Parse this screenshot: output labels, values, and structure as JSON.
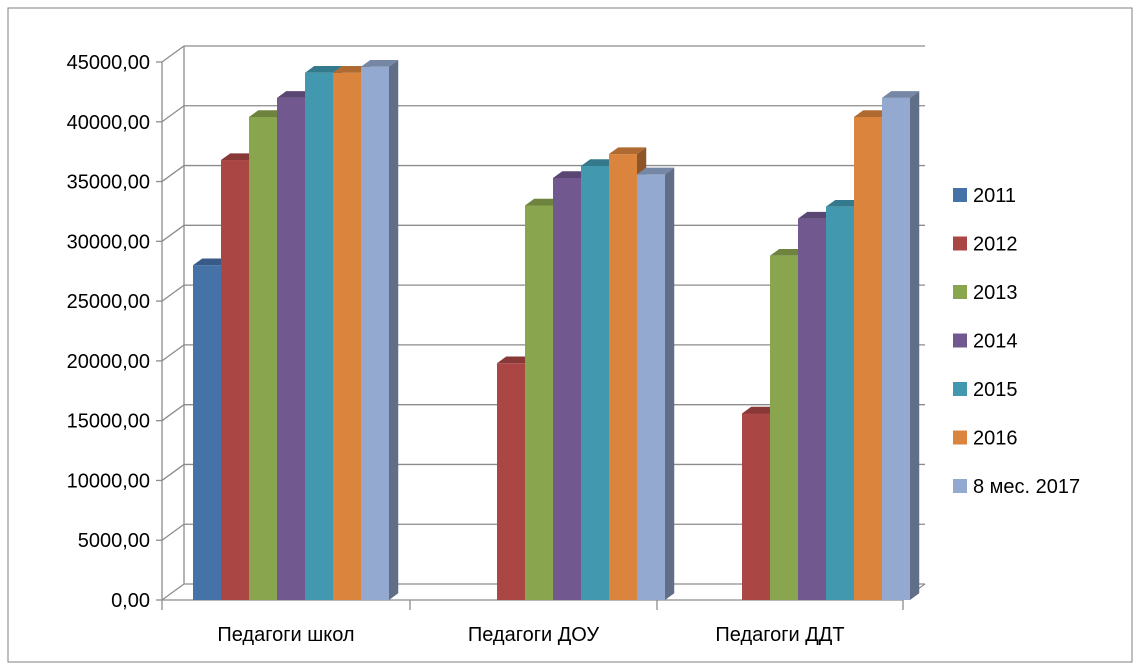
{
  "chart_data": {
    "type": "bar",
    "style": "3d-clustered-column",
    "categories": [
      "Педагоги школ",
      "Педагоги ДОУ",
      "Педагоги ДДТ"
    ],
    "ylim": [
      0,
      45000
    ],
    "ytick_step": 5000,
    "ytick_labels": [
      "0,00",
      "5000,00",
      "10000,00",
      "15000,00",
      "20000,00",
      "25000,00",
      "30000,00",
      "35000,00",
      "40000,00",
      "45000,00"
    ],
    "grid": true,
    "legend_position": "right",
    "series": [
      {
        "name": "2011",
        "color": "#4572A7",
        "values": [
          28000,
          0,
          0
        ]
      },
      {
        "name": "2012",
        "color": "#AA4643",
        "values": [
          36800,
          19800,
          15600
        ]
      },
      {
        "name": "2013",
        "color": "#89A54E",
        "values": [
          40400,
          33000,
          28800
        ]
      },
      {
        "name": "2014",
        "color": "#71588F",
        "values": [
          42000,
          35300,
          31900
        ]
      },
      {
        "name": "2015",
        "color": "#4198AF",
        "values": [
          44100,
          36300,
          32900
        ]
      },
      {
        "name": "2016",
        "color": "#DB843D",
        "values": [
          44100,
          37300,
          40400
        ]
      },
      {
        "name": "8 мес. 2017",
        "color": "#93A9CF",
        "values": [
          44600,
          35600,
          42000
        ]
      }
    ]
  }
}
